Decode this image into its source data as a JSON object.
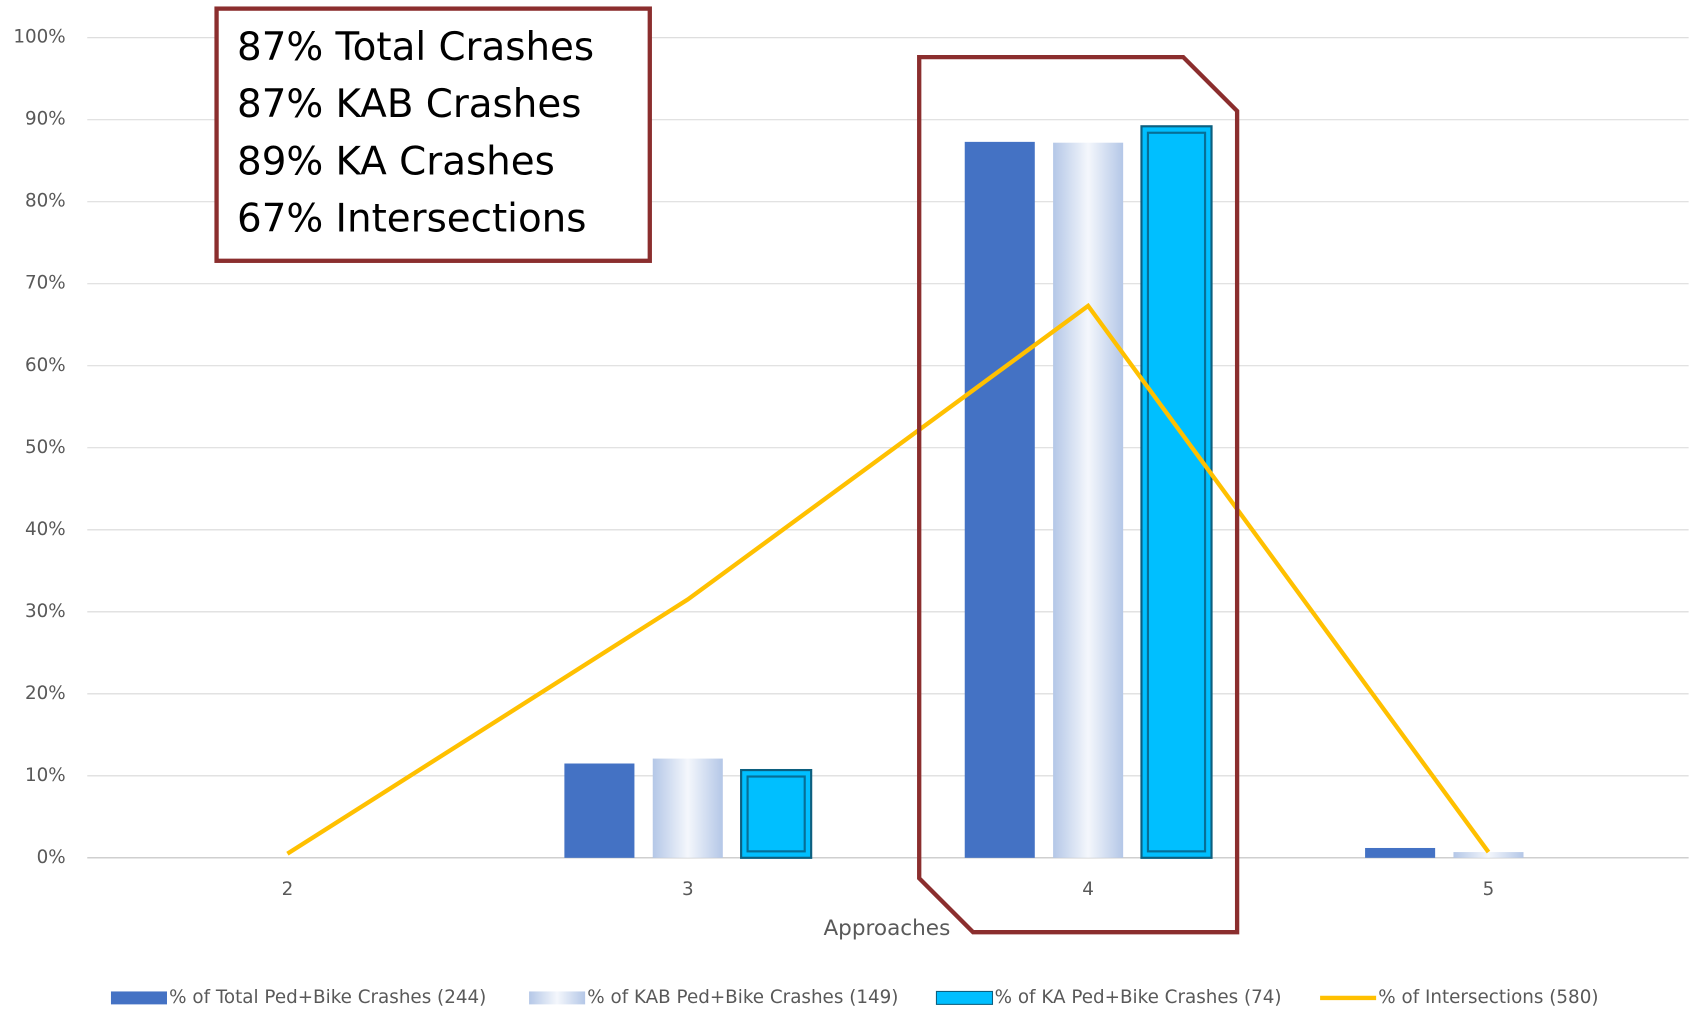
{
  "chart_data": {
    "type": "bar",
    "x_label": "Approaches",
    "categories": [
      "2",
      "3",
      "4",
      "5"
    ],
    "series": [
      {
        "name": "% of Total Ped+Bike Crashes (244)",
        "color": "#4472c4",
        "values": [
          0,
          11.5,
          87.3,
          1.2
        ]
      },
      {
        "name": "% of KAB Ped+Bike Crashes (149)",
        "color": "#b4c7e7",
        "values": [
          0,
          12.1,
          87.2,
          0.7
        ]
      },
      {
        "name": "% of KA Ped+Bike Crashes (74)",
        "color": "#00bfff",
        "values": [
          0,
          10.7,
          89.2,
          0
        ]
      },
      {
        "name": "% of Intersections (580)",
        "color": "#ffc000",
        "type": "line",
        "values": [
          0.5,
          31.5,
          67.3,
          0.7
        ]
      }
    ],
    "ylim": [
      0,
      100
    ],
    "yticks": [
      {
        "value": 0,
        "label": "0%"
      },
      {
        "value": 10,
        "label": "10%"
      },
      {
        "value": 20,
        "label": "20%"
      },
      {
        "value": 30,
        "label": "30%"
      },
      {
        "value": 40,
        "label": "40%"
      },
      {
        "value": 50,
        "label": "50%"
      },
      {
        "value": 60,
        "label": "60%"
      },
      {
        "value": 70,
        "label": "70%"
      },
      {
        "value": 80,
        "label": "80%"
      },
      {
        "value": 90,
        "label": "90%"
      },
      {
        "value": 100,
        "label": "100%"
      }
    ],
    "grid": true,
    "legend": "bottom",
    "annotation": [
      "87% Total Crashes",
      "87% KAB Crashes",
      "89% KA Crashes",
      "67% Intersections"
    ]
  }
}
